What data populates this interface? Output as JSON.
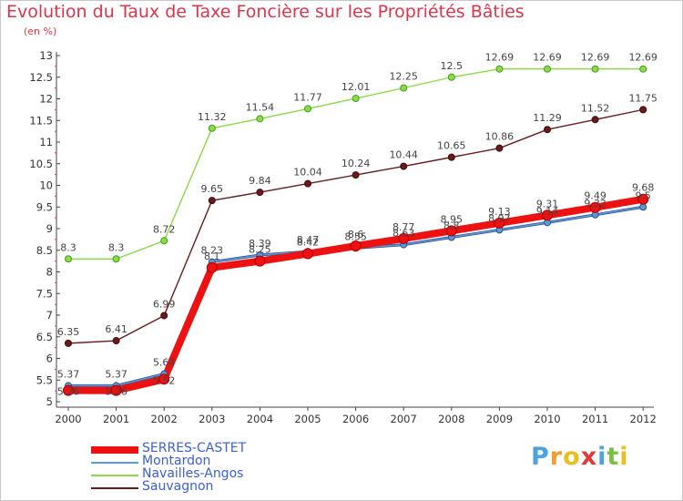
{
  "chart_data": {
    "type": "line",
    "title": "Evolution du Taux de Taxe Foncière sur les Propriétés Bâties",
    "ylabel": "(en %)",
    "xlabel": "",
    "categories": [
      "2000",
      "2001",
      "2002",
      "2003",
      "2004",
      "2005",
      "2006",
      "2007",
      "2008",
      "2009",
      "2010",
      "2011",
      "2012"
    ],
    "ylim": [
      5,
      13
    ],
    "yticks": [
      "5",
      "5.5",
      "6",
      "6.5",
      "7",
      "7.5",
      "8",
      "8.5",
      "9",
      "9.5",
      "10",
      "10.5",
      "11",
      "11.5",
      "12",
      "12.5",
      "13"
    ],
    "grid": false,
    "legend_position": "bottom-left",
    "series": [
      {
        "name": "SERRES-CASTET",
        "color": "#ee1111",
        "values": [
          5.26,
          5.26,
          5.52,
          8.1,
          8.25,
          8.42,
          8.6,
          8.77,
          8.95,
          9.13,
          9.31,
          9.49,
          9.68
        ]
      },
      {
        "name": "Montardon",
        "color": "#5b9bd5",
        "values": [
          5.37,
          5.37,
          5.64,
          8.23,
          8.39,
          8.47,
          8.55,
          8.63,
          8.8,
          8.97,
          9.14,
          9.32,
          9.5
        ]
      },
      {
        "name": "Navailles-Angos",
        "color": "#88dd44",
        "values": [
          8.3,
          8.3,
          8.72,
          11.32,
          11.54,
          11.77,
          12.01,
          12.25,
          12.5,
          12.69,
          12.69,
          12.69,
          12.69
        ]
      },
      {
        "name": "Sauvagnon",
        "color": "#6b1a1a",
        "values": [
          6.35,
          6.41,
          6.99,
          9.65,
          9.84,
          10.04,
          10.24,
          10.44,
          10.65,
          10.86,
          11.29,
          11.52,
          11.75
        ]
      }
    ],
    "data_labels": [
      [
        "5.26",
        "5.26",
        "5.52",
        "8.1",
        "8.25",
        "8.42",
        "8.6",
        "8.77",
        "8.95",
        "9.13",
        "9.31",
        "9.49",
        "9.68"
      ],
      [
        "5.37",
        "5.37",
        "5.64",
        "8.23",
        "8.39",
        "8.47",
        "8.55",
        "8.63",
        "8.8",
        "8.97",
        "9.14",
        "9.32",
        "9.5"
      ],
      [
        "8.3",
        "8.3",
        "8.72",
        "11.32",
        "11.54",
        "11.77",
        "12.01",
        "12.25",
        "12.5",
        "12.69",
        "12.69",
        "12.69",
        "12.69"
      ],
      [
        "6.35",
        "6.41",
        "6.99",
        "9.65",
        "9.84",
        "10.04",
        "10.24",
        "10.44",
        "10.65",
        "10.86",
        "11.29",
        "11.52",
        "11.75"
      ]
    ]
  },
  "brand": {
    "letters": [
      "P",
      "r",
      "o",
      "x",
      "i",
      "t",
      "i"
    ],
    "colors": [
      "#4aa3df",
      "#f0a030",
      "#e8c020",
      "#e03c3c",
      "#4aa3df",
      "#7ac143",
      "#e8c020"
    ]
  }
}
